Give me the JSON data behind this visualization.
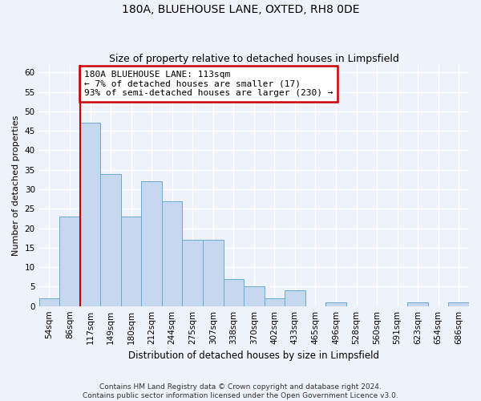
{
  "title": "180A, BLUEHOUSE LANE, OXTED, RH8 0DE",
  "subtitle": "Size of property relative to detached houses in Limpsfield",
  "xlabel": "Distribution of detached houses by size in Limpsfield",
  "ylabel": "Number of detached properties",
  "bin_labels": [
    "54sqm",
    "86sqm",
    "117sqm",
    "149sqm",
    "180sqm",
    "212sqm",
    "244sqm",
    "275sqm",
    "307sqm",
    "338sqm",
    "370sqm",
    "402sqm",
    "433sqm",
    "465sqm",
    "496sqm",
    "528sqm",
    "560sqm",
    "591sqm",
    "623sqm",
    "654sqm",
    "686sqm"
  ],
  "bar_heights": [
    2,
    23,
    47,
    34,
    23,
    32,
    27,
    17,
    17,
    7,
    5,
    2,
    4,
    0,
    1,
    0,
    0,
    0,
    1,
    0,
    1
  ],
  "bar_color": "#c5d8f0",
  "bar_edge_color": "#6aaad4",
  "property_line_index": 2,
  "ylim": [
    0,
    62
  ],
  "yticks": [
    0,
    5,
    10,
    15,
    20,
    25,
    30,
    35,
    40,
    45,
    50,
    55,
    60
  ],
  "annotation_text": "180A BLUEHOUSE LANE: 113sqm\n← 7% of detached houses are smaller (17)\n93% of semi-detached houses are larger (230) →",
  "annotation_box_color": "#ffffff",
  "annotation_box_edge": "#cc0000",
  "vline_color": "#cc0000",
  "footer_line1": "Contains HM Land Registry data © Crown copyright and database right 2024.",
  "footer_line2": "Contains public sector information licensed under the Open Government Licence v3.0.",
  "background_color": "#eef2fa",
  "grid_color": "#ffffff",
  "title_fontsize": 10,
  "subtitle_fontsize": 9,
  "xlabel_fontsize": 8.5,
  "ylabel_fontsize": 8,
  "tick_fontsize": 7.5,
  "footer_fontsize": 6.5,
  "annot_fontsize": 8
}
